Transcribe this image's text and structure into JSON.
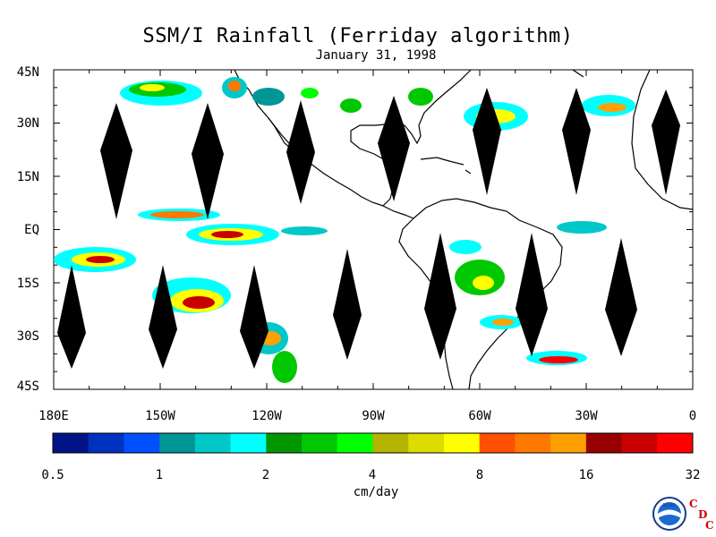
{
  "title": "SSM/I Rainfall (Ferriday algorithm)",
  "subtitle": "January 31, 1998",
  "lat_labels": [
    "45N",
    "30N",
    "15N",
    "EQ",
    "15S",
    "30S",
    "45S"
  ],
  "lon_labels": [
    "180E",
    "150W",
    "120W",
    "90W",
    "60W",
    "30W",
    "0"
  ],
  "colorbar": {
    "colors": [
      "#001488",
      "#0032c0",
      "#0050ff",
      "#009696",
      "#00c8c8",
      "#00ffff",
      "#009600",
      "#00c800",
      "#00ff00",
      "#b4b400",
      "#dcdc00",
      "#ffff00",
      "#ff5000",
      "#ff7800",
      "#ffa000",
      "#960000",
      "#c80000",
      "#ff0000"
    ],
    "labels": [
      "0.5",
      "1",
      "2",
      "4",
      "8",
      "16",
      "32"
    ],
    "units": "cm/day"
  },
  "logo": {
    "text": "NOAA",
    "letters": [
      "C",
      "D",
      "C"
    ]
  }
}
